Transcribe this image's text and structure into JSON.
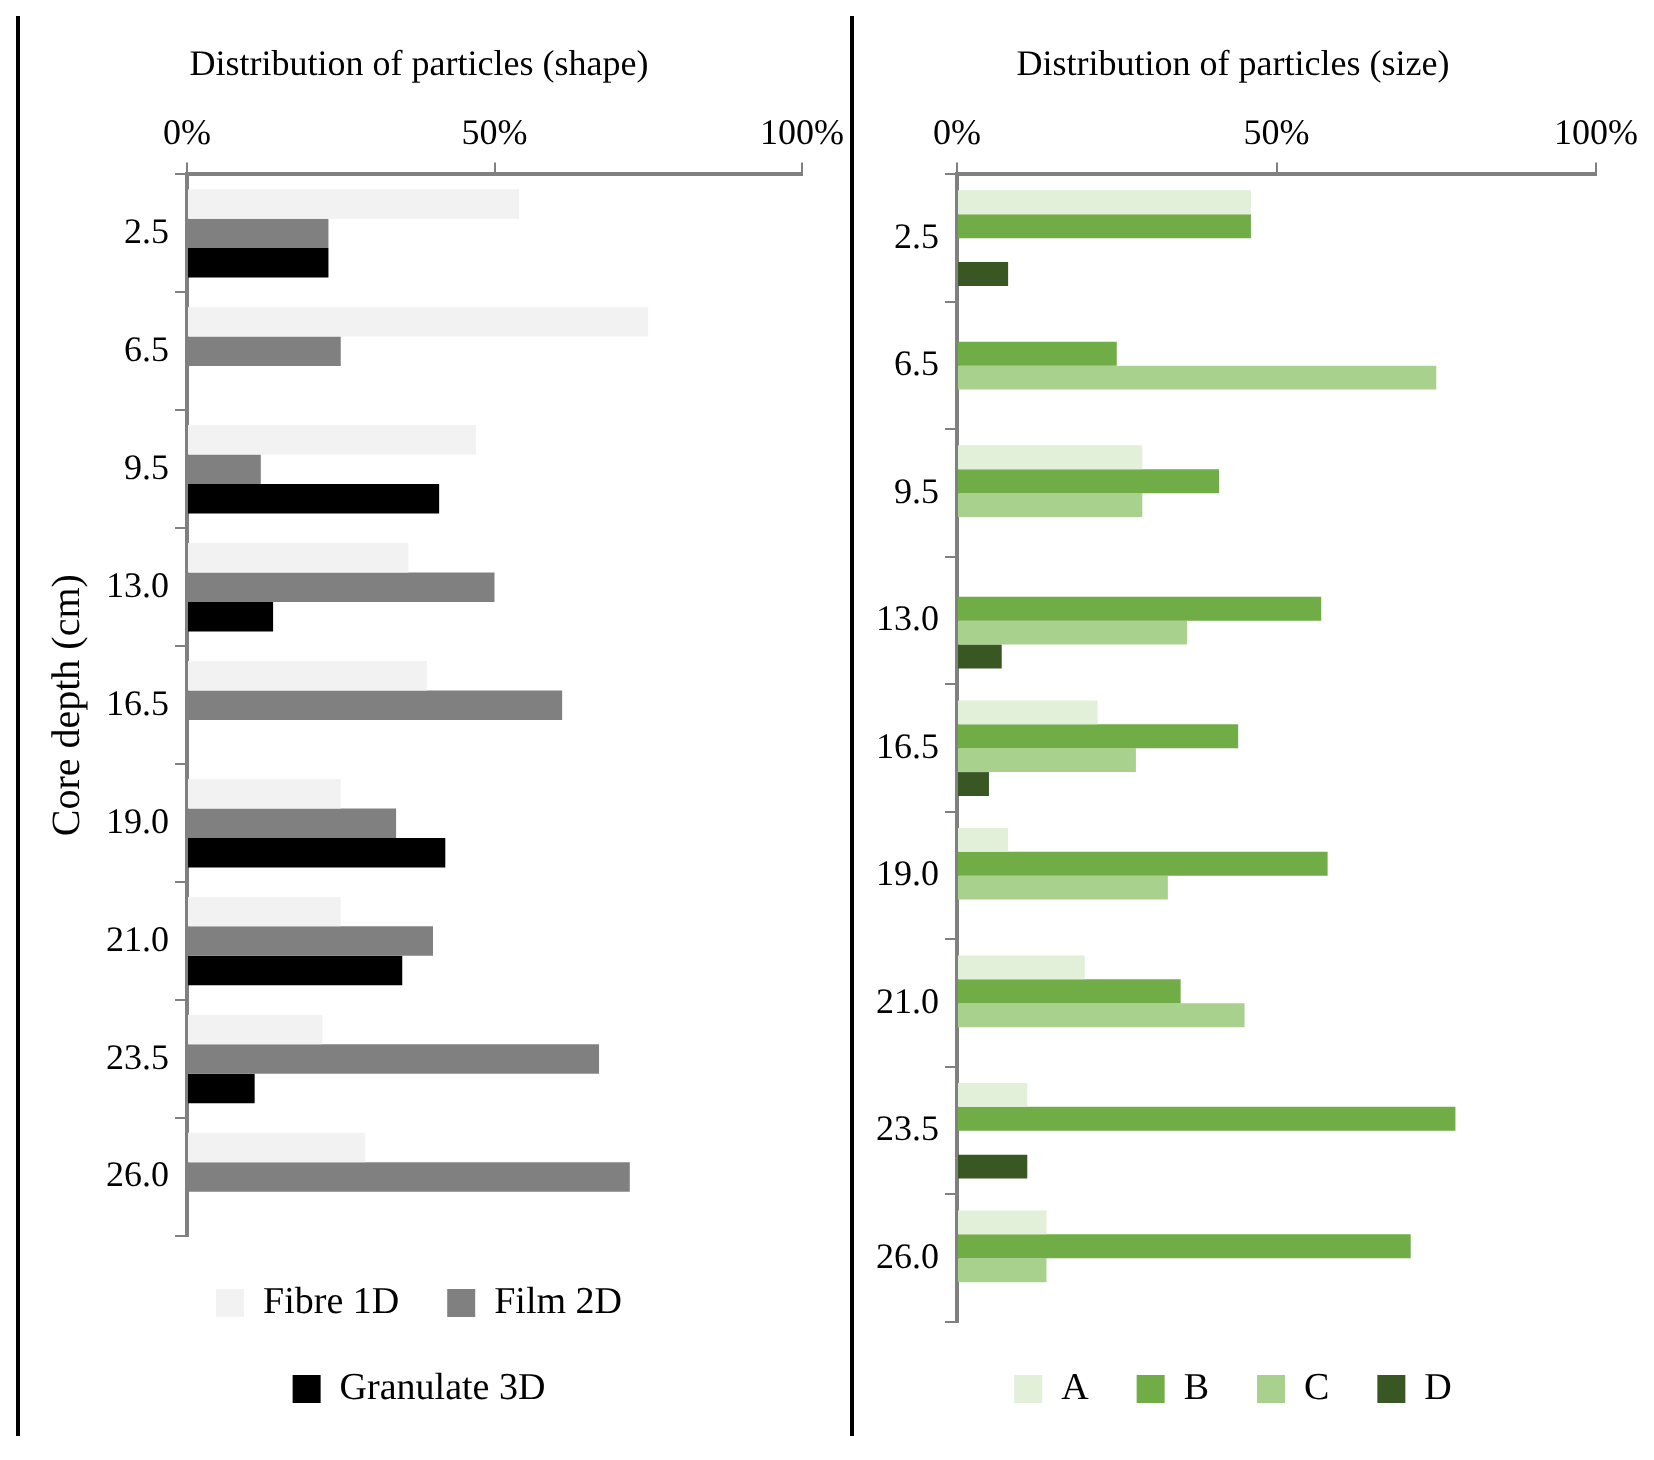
{
  "chart_data": [
    {
      "type": "bar",
      "orientation": "horizontal",
      "title": "Distribution of particles (shape)",
      "ylabel": "Core depth (cm)",
      "categories": [
        "2.5",
        "6.5",
        "9.5",
        "13.0",
        "16.5",
        "19.0",
        "21.0",
        "23.5",
        "26.0"
      ],
      "series": [
        {
          "name": "Fibre 1D",
          "color": "#f2f2f2",
          "values": [
            54,
            75,
            47,
            36,
            39,
            25,
            25,
            22,
            29
          ]
        },
        {
          "name": "Film 2D",
          "color": "#808080",
          "values": [
            23,
            25,
            12,
            50,
            61,
            34,
            40,
            67,
            72
          ]
        },
        {
          "name": "Granulate 3D",
          "color": "#000000",
          "values": [
            23,
            0,
            41,
            14,
            0,
            42,
            35,
            11,
            0
          ]
        }
      ],
      "xlim": [
        0,
        100
      ],
      "xticks": [
        {
          "value": 0,
          "label": "0%"
        },
        {
          "value": 50,
          "label": "50%"
        },
        {
          "value": 100,
          "label": "100%"
        }
      ],
      "grid": false,
      "legend": "bottom"
    },
    {
      "type": "bar",
      "orientation": "horizontal",
      "title": "Distribution of particles (size)",
      "categories": [
        "2.5",
        "6.5",
        "9.5",
        "13.0",
        "16.5",
        "19.0",
        "21.0",
        "23.5",
        "26.0"
      ],
      "series": [
        {
          "name": "A",
          "color": "#e2efd9",
          "values": [
            46,
            0,
            29,
            0,
            22,
            8,
            20,
            11,
            14
          ]
        },
        {
          "name": "B",
          "color": "#70ad47",
          "values": [
            46,
            25,
            41,
            57,
            44,
            58,
            35,
            78,
            71
          ]
        },
        {
          "name": "C",
          "color": "#a9d18e",
          "values": [
            0,
            75,
            29,
            36,
            28,
            33,
            45,
            0,
            14
          ]
        },
        {
          "name": "D",
          "color": "#385723",
          "values": [
            8,
            0,
            0,
            7,
            5,
            0,
            0,
            11,
            0
          ]
        }
      ],
      "xlim": [
        0,
        100
      ],
      "xticks": [
        {
          "value": 0,
          "label": "0%"
        },
        {
          "value": 50,
          "label": "50%"
        },
        {
          "value": 100,
          "label": "100%"
        }
      ],
      "grid": false,
      "legend": "bottom"
    }
  ]
}
